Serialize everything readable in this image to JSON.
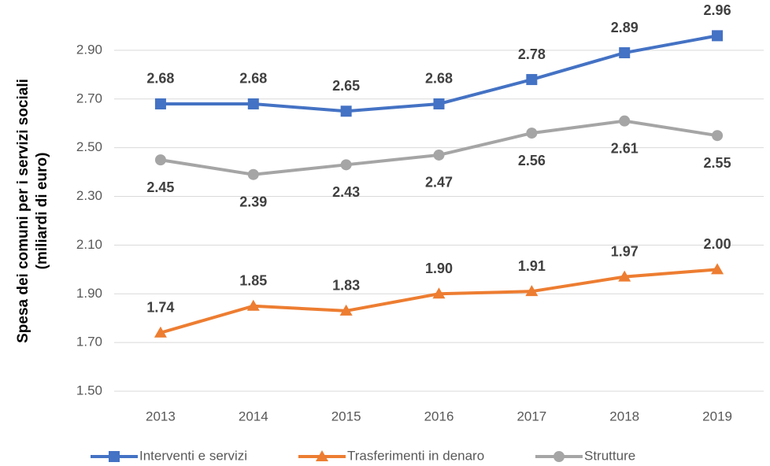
{
  "chart_data": {
    "type": "line",
    "ylabel": [
      "Spesa dei comuni per i servizi sociali",
      "(miliardi di euro)"
    ],
    "categories": [
      "2013",
      "2014",
      "2015",
      "2016",
      "2017",
      "2018",
      "2019"
    ],
    "series": [
      {
        "name": "Interventi e servizi",
        "color": "#4472c4",
        "marker": "square",
        "values": [
          2.68,
          2.68,
          2.65,
          2.68,
          2.78,
          2.89,
          2.96
        ],
        "value_labels": [
          "2.68",
          "2.68",
          "2.65",
          "2.68",
          "2.78",
          "2.89",
          "2.96"
        ]
      },
      {
        "name": "Trasferimenti in denaro",
        "color": "#ed7d31",
        "marker": "triangle",
        "values": [
          1.74,
          1.85,
          1.83,
          1.9,
          1.91,
          1.97,
          2
        ],
        "value_labels": [
          "1.74",
          "1.85",
          "1.83",
          "1.90",
          "1.91",
          "1.97",
          "2.00"
        ]
      },
      {
        "name": "Strutture",
        "color": "#a5a5a5",
        "marker": "circle",
        "values": [
          2.45,
          2.39,
          2.43,
          2.47,
          2.56,
          2.61,
          2.55
        ],
        "value_labels": [
          "2.45",
          "2.39",
          "2.43",
          "2.47",
          "2.56",
          "2.61",
          "2.55"
        ]
      }
    ],
    "ylim": [
      1.5,
      3.0
    ],
    "yticks": [
      {
        "value": 1.5,
        "label": "1.50"
      },
      {
        "value": 1.7,
        "label": "1.70"
      },
      {
        "value": 1.9,
        "label": "1.90"
      },
      {
        "value": 2.1,
        "label": "2.10"
      },
      {
        "value": 2.3,
        "label": "2.30"
      },
      {
        "value": 2.5,
        "label": "2.50"
      },
      {
        "value": 2.7,
        "label": "2.70"
      },
      {
        "value": 2.9,
        "label": "2.90"
      }
    ],
    "grid": true
  }
}
